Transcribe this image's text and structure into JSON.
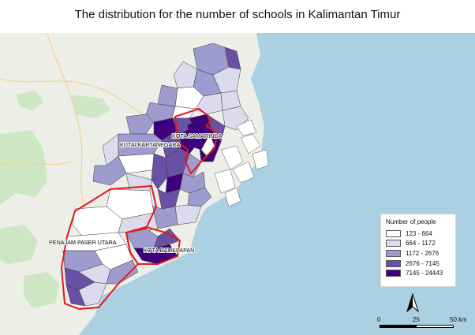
{
  "title": "The distribution for the number of schools in Kalimantan Timur",
  "colors": {
    "sea": "#abd0e2",
    "land": "#eceee7",
    "forest": "#cde6c4",
    "road": "#f6d18f",
    "boundary": "#e31a1c",
    "classes": [
      "#ffffff",
      "#dcdaed",
      "#a09bce",
      "#6a51a3",
      "#3f007d"
    ]
  },
  "regions": {
    "kutai_kartanegara": "KUTAI KARTANEGARA",
    "kota_samarinda": "KOTA SAMARINDA",
    "penajam_paser_utara": "PENAJAM PASER UTARA",
    "kota_balikpapan": "KOTA BALIKPAPAN"
  },
  "legend": {
    "title": "Number of people",
    "classes": [
      {
        "label": "123 - 664"
      },
      {
        "label": "664 - 1172"
      },
      {
        "label": "1172 - 2676"
      },
      {
        "label": "2676 - 7145"
      },
      {
        "label": "7145 - 24443"
      }
    ]
  },
  "north_arrow": "N",
  "scale": {
    "labels": [
      "0",
      "25",
      "50 km"
    ]
  }
}
